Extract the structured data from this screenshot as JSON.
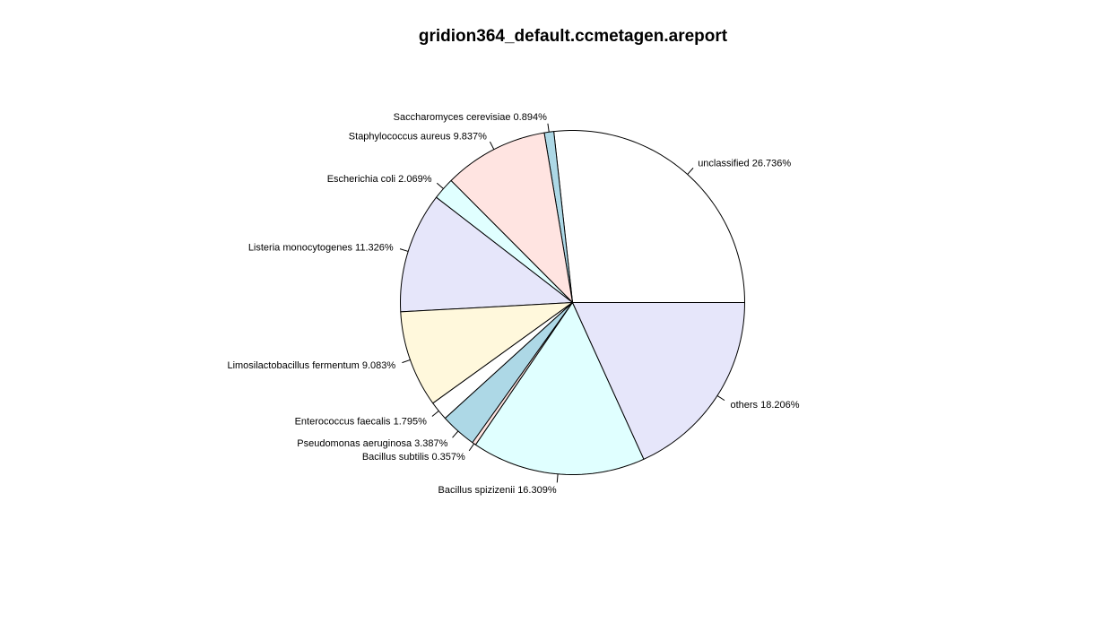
{
  "chart_data": {
    "type": "pie",
    "title": "gridion364_default.ccmetagen.areport",
    "direction": "counterclockwise",
    "start_angle_deg": 0,
    "slices": [
      {
        "label": "unclassified 26.736%",
        "value": 26.736,
        "color": "#ffffff"
      },
      {
        "label": "Saccharomyces cerevisiae 0.894%",
        "value": 0.894,
        "color": "#add8e6"
      },
      {
        "label": "Staphylococcus aureus 9.837%",
        "value": 9.837,
        "color": "#ffe4e1"
      },
      {
        "label": "Escherichia coli 2.069%",
        "value": 2.069,
        "color": "#e0ffff"
      },
      {
        "label": "Listeria monocytogenes 11.326%",
        "value": 11.326,
        "color": "#e6e6fa"
      },
      {
        "label": "Limosilactobacillus fermentum 9.083%",
        "value": 9.083,
        "color": "#fff8dc"
      },
      {
        "label": "Enterococcus faecalis 1.795%",
        "value": 1.795,
        "color": "#ffffff"
      },
      {
        "label": "Pseudomonas aeruginosa 3.387%",
        "value": 3.387,
        "color": "#add8e6"
      },
      {
        "label": "Bacillus subtilis 0.357%",
        "value": 0.357,
        "color": "#ffe4e1"
      },
      {
        "label": "Bacillus spizizenii 16.309%",
        "value": 16.309,
        "color": "#e0ffff"
      },
      {
        "label": "others 18.206%",
        "value": 18.206,
        "color": "#e6e6fa"
      }
    ]
  }
}
